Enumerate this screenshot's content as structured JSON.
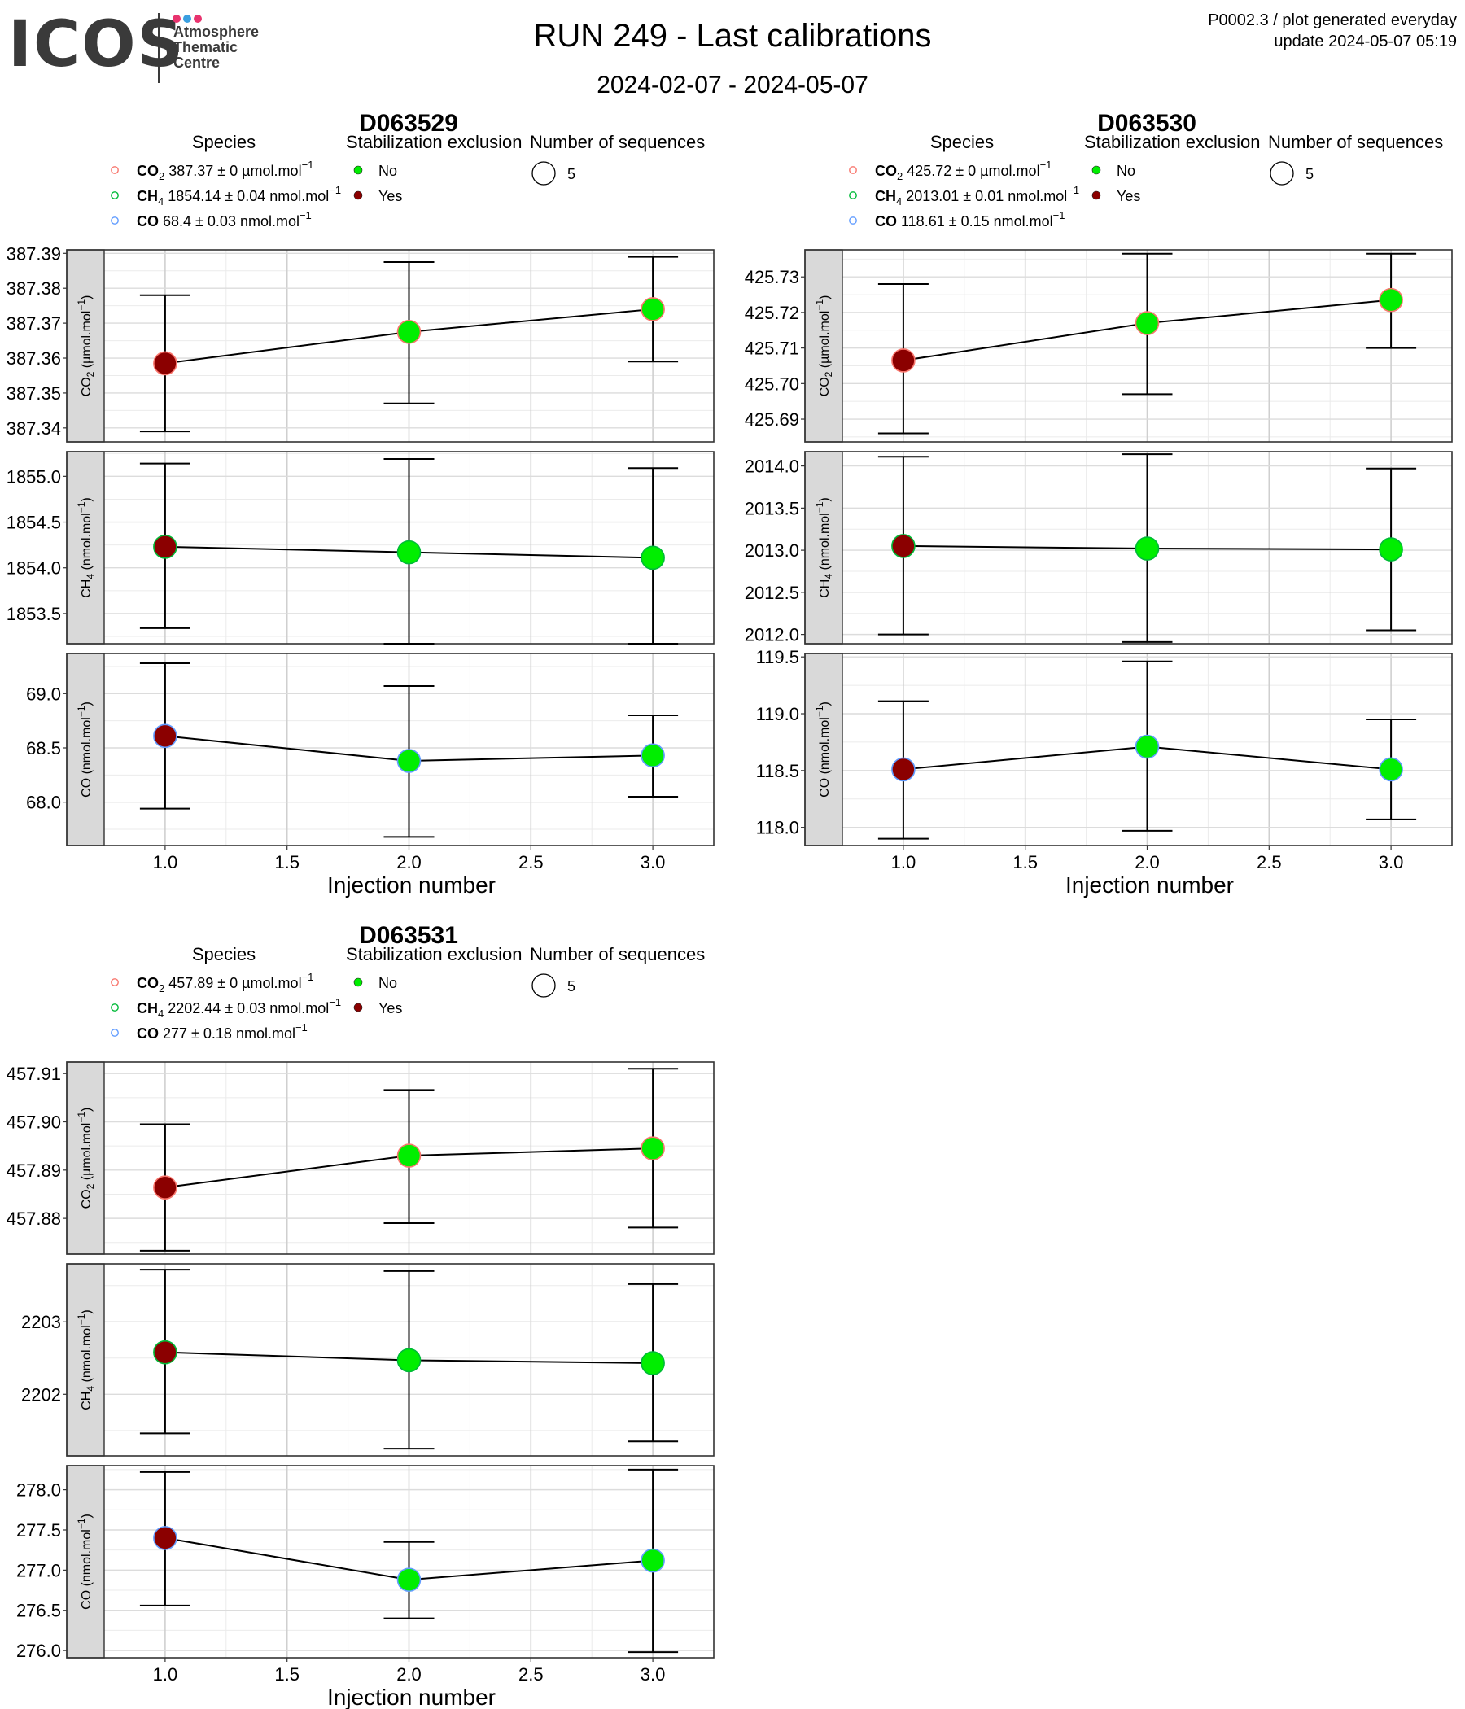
{
  "header": {
    "logo_text": "ICOS",
    "logo_subtitle": [
      "Atmosphere",
      "Thematic",
      "Centre"
    ],
    "logo_dot_colors": [
      "#e8336e",
      "#3a9fe0",
      "#e8336e"
    ],
    "title": "RUN 249 - Last calibrations",
    "subtitle": "2024-02-07 - 2024-05-07",
    "corner_line1": "P0002.3 / plot generated everyday",
    "corner_line2": "update  2024-05-07 05:19"
  },
  "legend_titles": {
    "species": "Species",
    "stabilization": "Stabilization exclusion",
    "sequences": "Number of sequences"
  },
  "stabilization_levels": [
    {
      "label": "No",
      "color": "#00ee00"
    },
    {
      "label": "Yes",
      "color": "#8b0000"
    }
  ],
  "sequence_count_label": "5",
  "species_colors": {
    "CO2": "#f8766d",
    "CH4": "#00ba38",
    "CO": "#619cff"
  },
  "x_axis_title": "Injection number",
  "chart_data": [
    {
      "type": "scatter",
      "title": "D063529",
      "legend": [
        {
          "species": "CO",
          "sub": "2",
          "text": "387.37 ± 0 µmol.mol",
          "exp": "−1"
        },
        {
          "species": "CH",
          "sub": "4",
          "text": "1854.14 ± 0.04 nmol.mol",
          "exp": "−1"
        },
        {
          "species": "CO",
          "sub": "",
          "text": "68.4 ± 0.03 nmol.mol",
          "exp": "−1"
        }
      ],
      "x_ticks": [
        "1.0",
        "1.5",
        "2.0",
        "2.5",
        "3.0"
      ],
      "xlim": [
        0.75,
        3.25
      ],
      "panels": [
        {
          "strip": "CO2 (µmol.mol-1)",
          "strip_main": "CO",
          "strip_sub": "2",
          "strip_unit": " (µmol.mol",
          "ylim": [
            387.336,
            387.391
          ],
          "y_ticks": [
            387.34,
            387.35,
            387.36,
            387.37,
            387.38,
            387.39
          ],
          "y_tick_labels": [
            "387.34",
            "387.35",
            "387.36",
            "387.37",
            "387.38",
            "387.39"
          ],
          "points": [
            {
              "x": 1,
              "y": 387.3585,
              "lo": 387.339,
              "hi": 387.378,
              "excluded": true
            },
            {
              "x": 2,
              "y": 387.3675,
              "lo": 387.347,
              "hi": 387.3875,
              "excluded": false
            },
            {
              "x": 3,
              "y": 387.374,
              "lo": 387.359,
              "hi": 387.389,
              "excluded": false
            }
          ]
        },
        {
          "strip": "CH4 (nmol.mol-1)",
          "strip_main": "CH",
          "strip_sub": "4",
          "strip_unit": " (nmol.mol",
          "ylim": [
            1853.17,
            1855.27
          ],
          "y_ticks": [
            1853.5,
            1854.0,
            1854.5,
            1855.0
          ],
          "y_tick_labels": [
            "1853.5",
            "1854.0",
            "1854.5",
            "1855.0"
          ],
          "points": [
            {
              "x": 1,
              "y": 1854.23,
              "lo": 1853.34,
              "hi": 1855.14,
              "excluded": true
            },
            {
              "x": 2,
              "y": 1854.17,
              "lo": 1853.17,
              "hi": 1855.19,
              "excluded": false
            },
            {
              "x": 3,
              "y": 1854.11,
              "lo": 1853.17,
              "hi": 1855.09,
              "excluded": false
            }
          ]
        },
        {
          "strip": "CO (nmol.mol-1)",
          "strip_main": "CO",
          "strip_sub": "",
          "strip_unit": " (nmol.mol",
          "ylim": [
            67.6,
            69.37
          ],
          "y_ticks": [
            68.0,
            68.5,
            69.0
          ],
          "y_tick_labels": [
            "68.0",
            "68.5",
            "69.0"
          ],
          "points": [
            {
              "x": 1,
              "y": 68.61,
              "lo": 67.94,
              "hi": 69.28,
              "excluded": true
            },
            {
              "x": 2,
              "y": 68.38,
              "lo": 67.68,
              "hi": 69.07,
              "excluded": false
            },
            {
              "x": 3,
              "y": 68.43,
              "lo": 68.05,
              "hi": 68.8,
              "excluded": false
            }
          ]
        }
      ]
    },
    {
      "type": "scatter",
      "title": "D063530",
      "legend": [
        {
          "species": "CO",
          "sub": "2",
          "text": "425.72 ± 0 µmol.mol",
          "exp": "−1"
        },
        {
          "species": "CH",
          "sub": "4",
          "text": "2013.01 ± 0.01 nmol.mol",
          "exp": "−1"
        },
        {
          "species": "CO",
          "sub": "",
          "text": "118.61 ± 0.15 nmol.mol",
          "exp": "−1"
        }
      ],
      "x_ticks": [
        "1.0",
        "1.5",
        "2.0",
        "2.5",
        "3.0"
      ],
      "xlim": [
        0.75,
        3.25
      ],
      "panels": [
        {
          "strip": "CO2 (µmol.mol-1)",
          "strip_main": "CO",
          "strip_sub": "2",
          "strip_unit": " (µmol.mol",
          "ylim": [
            425.6836,
            425.7376
          ],
          "y_ticks": [
            425.69,
            425.7,
            425.71,
            425.72,
            425.73
          ],
          "y_tick_labels": [
            "425.69",
            "425.70",
            "425.71",
            "425.72",
            "425.73"
          ],
          "points": [
            {
              "x": 1,
              "y": 425.7065,
              "lo": 425.686,
              "hi": 425.728,
              "excluded": true
            },
            {
              "x": 2,
              "y": 425.717,
              "lo": 425.697,
              "hi": 425.7365,
              "excluded": false
            },
            {
              "x": 3,
              "y": 425.7235,
              "lo": 425.71,
              "hi": 425.7365,
              "excluded": false
            }
          ]
        },
        {
          "strip": "CH4 (nmol.mol-1)",
          "strip_main": "CH",
          "strip_sub": "4",
          "strip_unit": " (nmol.mol",
          "ylim": [
            2011.89,
            2014.17
          ],
          "y_ticks": [
            2012.0,
            2012.5,
            2013.0,
            2013.5,
            2014.0
          ],
          "y_tick_labels": [
            "2012.0",
            "2012.5",
            "2013.0",
            "2013.5",
            "2014.0"
          ],
          "points": [
            {
              "x": 1,
              "y": 2013.05,
              "lo": 2012.0,
              "hi": 2014.11,
              "excluded": true
            },
            {
              "x": 2,
              "y": 2013.02,
              "lo": 2011.91,
              "hi": 2014.14,
              "excluded": false
            },
            {
              "x": 3,
              "y": 2013.01,
              "lo": 2012.05,
              "hi": 2013.97,
              "excluded": false
            }
          ]
        },
        {
          "strip": "CO (nmol.mol-1)",
          "strip_main": "CO",
          "strip_sub": "",
          "strip_unit": " (nmol.mol",
          "ylim": [
            117.84,
            119.53
          ],
          "y_ticks": [
            118.0,
            118.5,
            119.0,
            119.5
          ],
          "y_tick_labels": [
            "118.0",
            "118.5",
            "119.0",
            "119.5"
          ],
          "points": [
            {
              "x": 1,
              "y": 118.51,
              "lo": 117.9,
              "hi": 119.11,
              "excluded": true
            },
            {
              "x": 2,
              "y": 118.71,
              "lo": 117.97,
              "hi": 119.46,
              "excluded": false
            },
            {
              "x": 3,
              "y": 118.51,
              "lo": 118.07,
              "hi": 118.95,
              "excluded": false
            }
          ]
        }
      ]
    },
    {
      "type": "scatter",
      "title": "D063531",
      "legend": [
        {
          "species": "CO",
          "sub": "2",
          "text": "457.89 ± 0 µmol.mol",
          "exp": "−1"
        },
        {
          "species": "CH",
          "sub": "4",
          "text": "2202.44 ± 0.03 nmol.mol",
          "exp": "−1"
        },
        {
          "species": "CO",
          "sub": "",
          "text": "277 ± 0.18 nmol.mol",
          "exp": "−1"
        }
      ],
      "x_ticks": [
        "1.0",
        "1.5",
        "2.0",
        "2.5",
        "3.0"
      ],
      "xlim": [
        0.75,
        3.25
      ],
      "panels": [
        {
          "strip": "CO2 (µmol.mol-1)",
          "strip_main": "CO",
          "strip_sub": "2",
          "strip_unit": " (µmol.mol",
          "ylim": [
            457.8726,
            457.9124
          ],
          "y_ticks": [
            457.88,
            457.89,
            457.9,
            457.91
          ],
          "y_tick_labels": [
            "457.88",
            "457.89",
            "457.90",
            "457.91"
          ],
          "points": [
            {
              "x": 1,
              "y": 457.8864,
              "lo": 457.8733,
              "hi": 457.8995,
              "excluded": true
            },
            {
              "x": 2,
              "y": 457.893,
              "lo": 457.879,
              "hi": 457.9066,
              "excluded": false
            },
            {
              "x": 3,
              "y": 457.8945,
              "lo": 457.8781,
              "hi": 457.911,
              "excluded": false
            }
          ]
        },
        {
          "strip": "CH4 (nmol.mol-1)",
          "strip_main": "CH",
          "strip_sub": "4",
          "strip_unit": " (nmol.mol",
          "ylim": [
            2201.15,
            2203.8
          ],
          "y_ticks": [
            2202,
            2203
          ],
          "y_tick_labels": [
            "2202",
            "2203"
          ],
          "points": [
            {
              "x": 1,
              "y": 2202.58,
              "lo": 2201.46,
              "hi": 2203.72,
              "excluded": true
            },
            {
              "x": 2,
              "y": 2202.47,
              "lo": 2201.25,
              "hi": 2203.7,
              "excluded": false
            },
            {
              "x": 3,
              "y": 2202.43,
              "lo": 2201.35,
              "hi": 2203.52,
              "excluded": false
            }
          ]
        },
        {
          "strip": "CO (nmol.mol-1)",
          "strip_main": "CO",
          "strip_sub": "",
          "strip_unit": " (nmol.mol",
          "ylim": [
            275.91,
            278.3
          ],
          "y_ticks": [
            276.0,
            276.5,
            277.0,
            277.5,
            278.0
          ],
          "y_tick_labels": [
            "276.0",
            "276.5",
            "277.0",
            "277.5",
            "278.0"
          ],
          "points": [
            {
              "x": 1,
              "y": 277.4,
              "lo": 276.56,
              "hi": 278.22,
              "excluded": true
            },
            {
              "x": 2,
              "y": 276.88,
              "lo": 276.4,
              "hi": 277.35,
              "excluded": false
            },
            {
              "x": 3,
              "y": 277.12,
              "lo": 275.98,
              "hi": 278.25,
              "excluded": false
            }
          ]
        }
      ]
    }
  ]
}
